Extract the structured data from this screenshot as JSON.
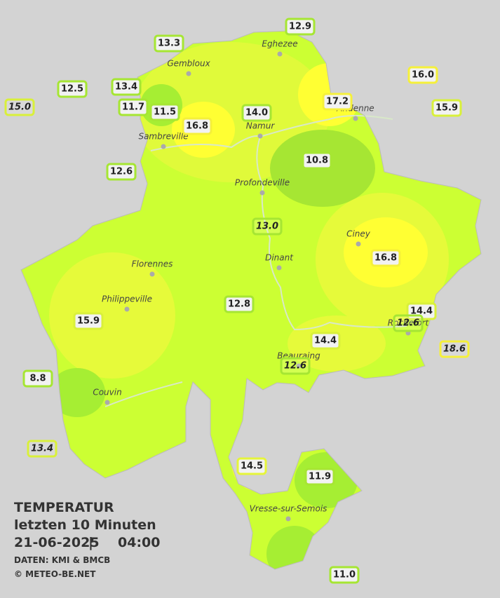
{
  "title": {
    "line1": "TEMPERATUR",
    "line2": "letzten 10 Minuten",
    "date": "21-06-2025",
    "separator": "|",
    "time": "04:00",
    "source": "DATEN: KMI & BMCB",
    "copyright": "© METEO-BE.NET"
  },
  "cities": [
    "Eghezee",
    "Gembloux",
    "Andenne",
    "Namur",
    "Sambreville",
    "Profondeville",
    "Ciney",
    "Dinant",
    "Florennes",
    "Philippeville",
    "Couvin",
    "Rochefort",
    "Beauraing",
    "Vresse-sur-Semois"
  ],
  "stations": [
    "12.9",
    "13.3",
    "16.0",
    "12.5",
    "13.4",
    "15.0",
    "15.9",
    "11.7",
    "11.5",
    "17.2",
    "14.0",
    "16.8",
    "10.8",
    "12.6",
    "13.0",
    "16.8",
    "12.8",
    "14.4",
    "12.6",
    "15.9",
    "14.4",
    "18.6",
    "12.6",
    "8.8",
    "13.4",
    "14.5",
    "11.9",
    "11.0"
  ]
}
